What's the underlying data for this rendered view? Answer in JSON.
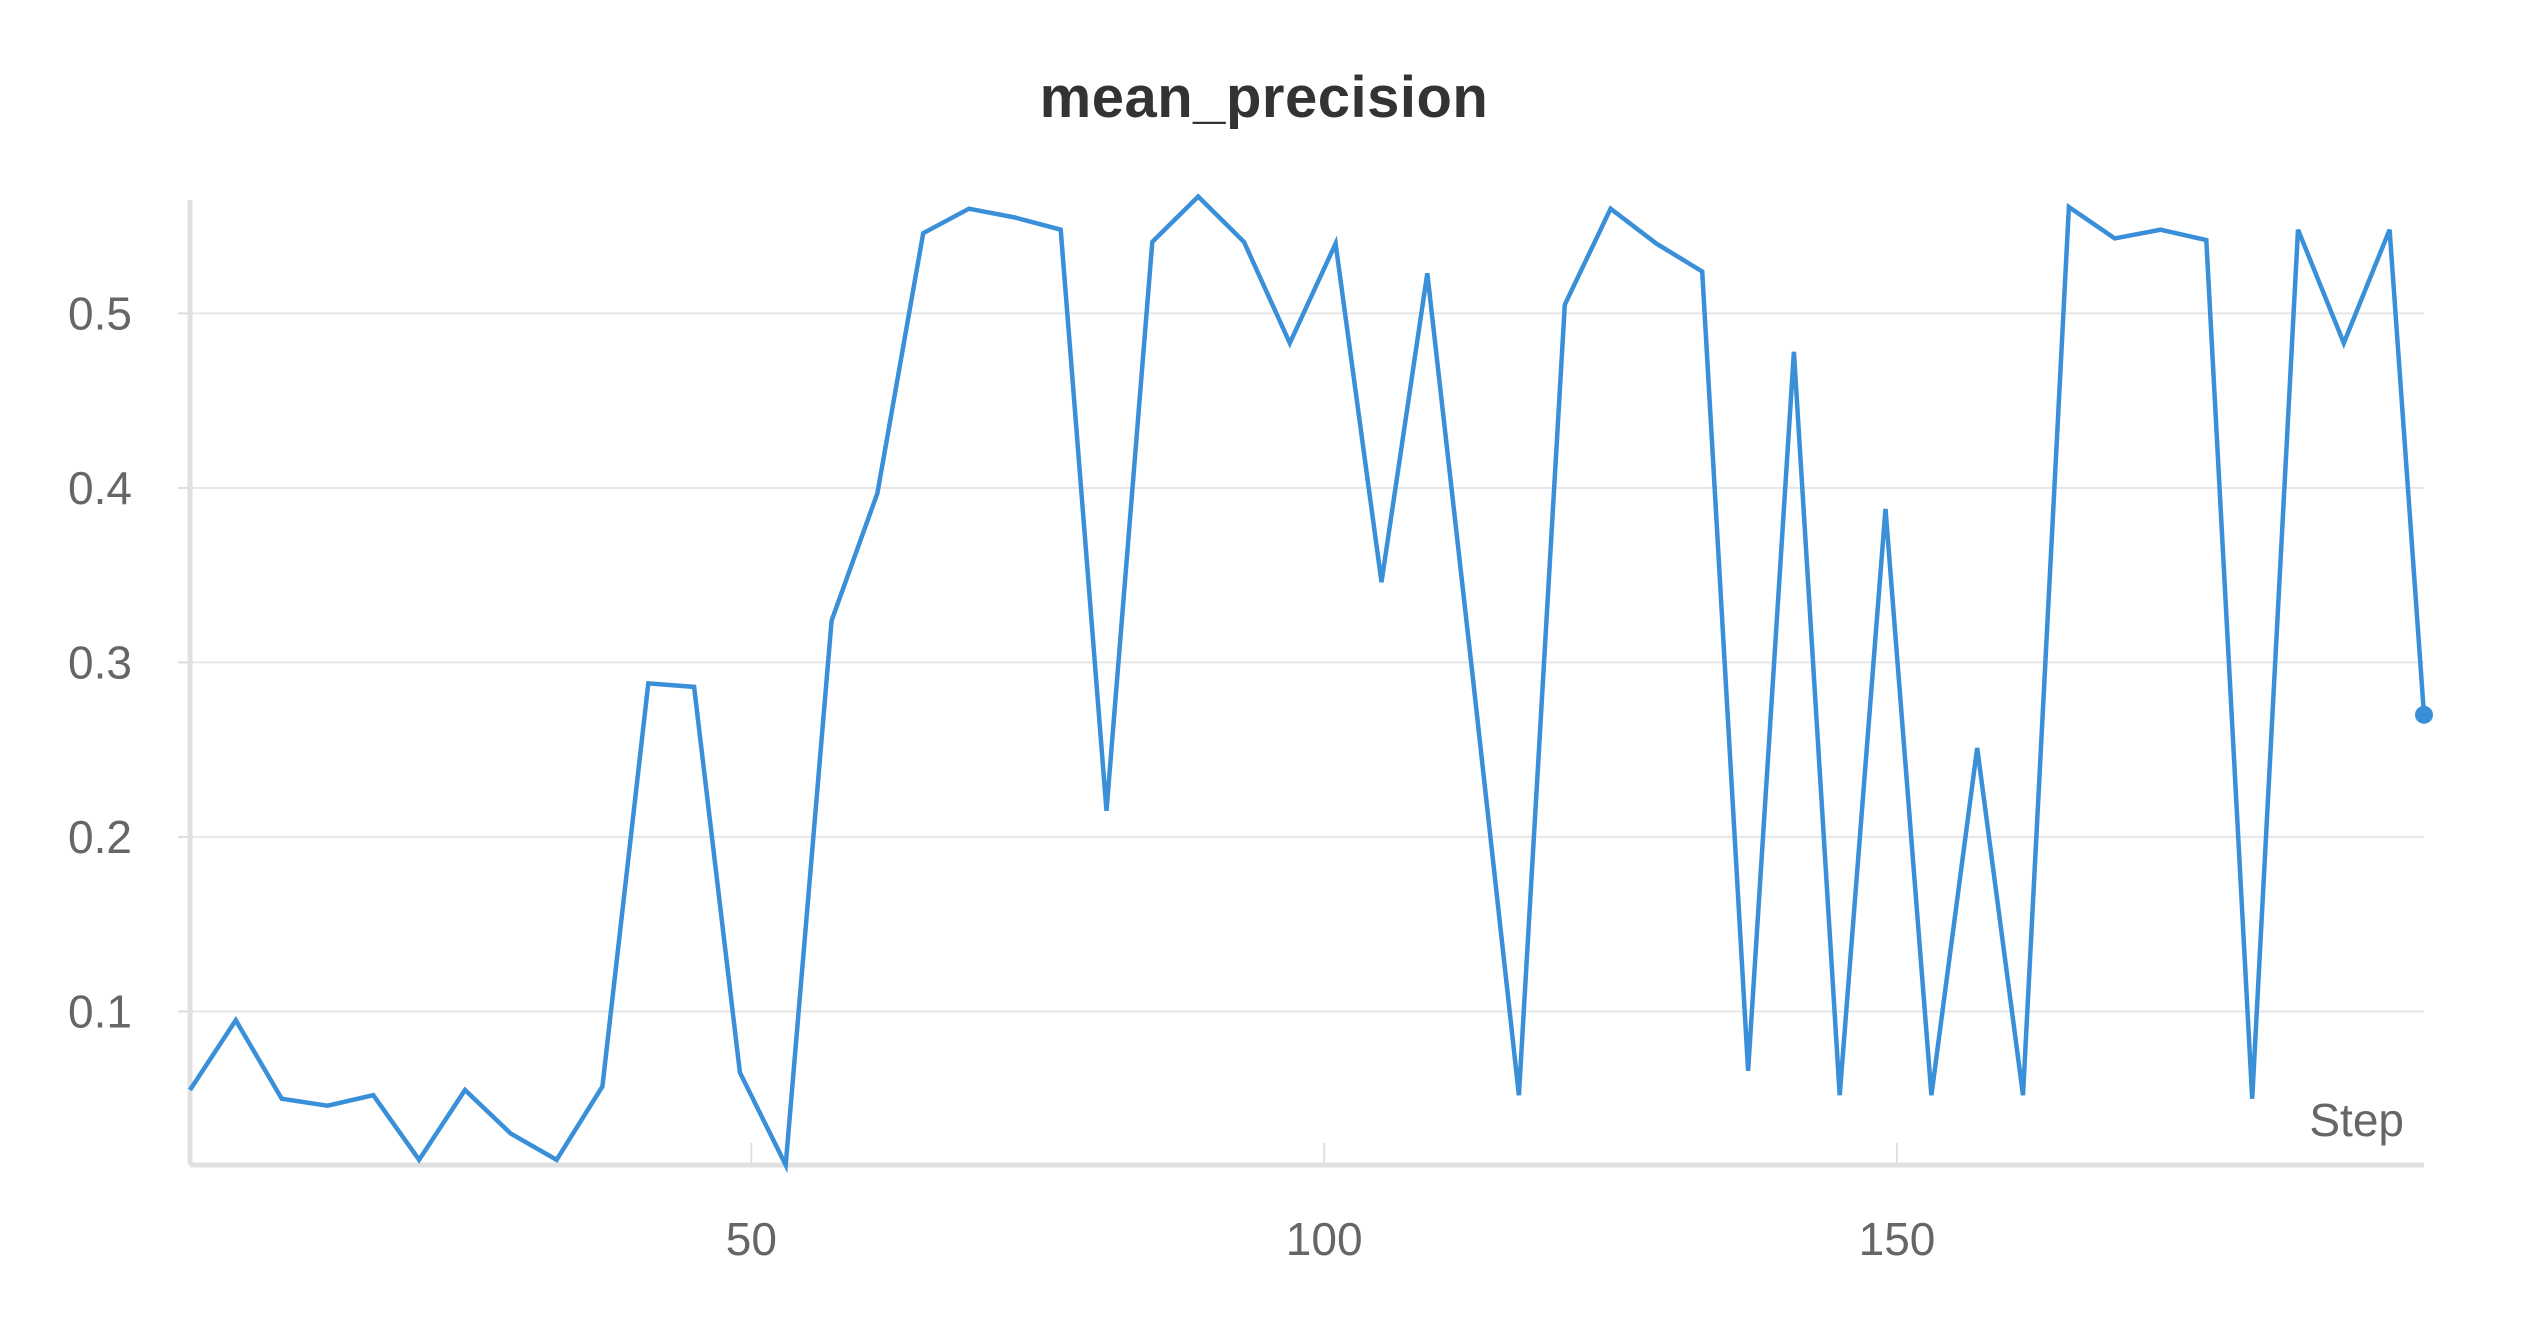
{
  "chart_data": {
    "type": "line",
    "title": "mean_precision",
    "xlabel": "Step",
    "ylabel": "",
    "xlim": [
      1,
      196
    ],
    "ylim": [
      0.012,
      0.565
    ],
    "x_ticks": [
      50,
      100,
      150
    ],
    "y_ticks": [
      0.1,
      0.2,
      0.3,
      0.4,
      0.5
    ],
    "grid": true,
    "series": [
      {
        "color": "#3a8fd9",
        "x": [
          1,
          5,
          9,
          13,
          17,
          21,
          25,
          29,
          33,
          37,
          41,
          45,
          49,
          53,
          57,
          61,
          65,
          69,
          73,
          77,
          81,
          85,
          89,
          93,
          97,
          101,
          105,
          109,
          113,
          117,
          121,
          125,
          129,
          133,
          137,
          141,
          145,
          149,
          153,
          157,
          161,
          165,
          169,
          173,
          177,
          181,
          185,
          189,
          193,
          197
        ],
        "values": [
          0.055,
          0.095,
          0.05,
          0.046,
          0.052,
          0.015,
          0.055,
          0.03,
          0.015,
          0.057,
          0.288,
          0.286,
          0.065,
          0.012,
          0.324,
          0.397,
          0.546,
          0.56,
          0.555,
          0.548,
          0.215,
          0.541,
          0.567,
          0.541,
          0.483,
          0.54,
          0.346,
          0.523,
          0.29,
          0.052,
          0.505,
          0.56,
          0.54,
          0.524,
          0.066,
          0.478,
          0.052,
          0.388,
          0.052,
          0.251,
          0.052,
          0.561,
          0.543,
          0.548,
          0.542,
          0.05,
          0.548,
          0.483,
          0.548,
          0.27
        ]
      }
    ]
  }
}
